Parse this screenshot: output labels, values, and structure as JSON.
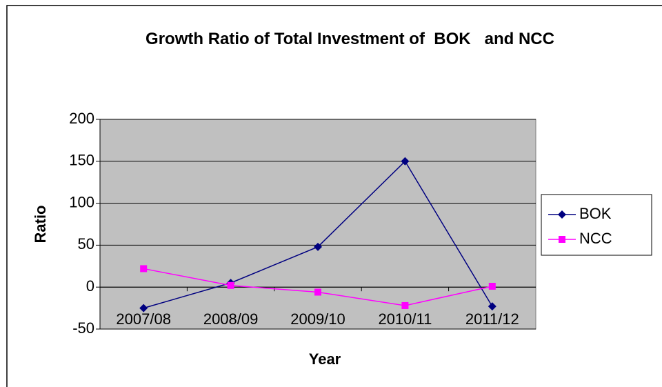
{
  "chart_data": {
    "type": "line",
    "title": "Growth Ratio of Total Investment of  BOK   and NCC",
    "x_label": "Year",
    "y_label": "Ratio",
    "categories": [
      "2007/08",
      "2008/09",
      "2009/10",
      "2010/11",
      "2011/12"
    ],
    "series": [
      {
        "name": "BOK",
        "color": "#000080",
        "marker": "diamond",
        "values": [
          -25,
          5,
          48,
          150,
          -23
        ]
      },
      {
        "name": "NCC",
        "color": "#ff00ff",
        "marker": "square",
        "values": [
          22,
          2,
          -6,
          -22,
          1
        ]
      }
    ],
    "ylim": [
      -50,
      200
    ],
    "yticks": [
      -50,
      0,
      50,
      100,
      150,
      200
    ],
    "grid": true,
    "legend": "right"
  }
}
